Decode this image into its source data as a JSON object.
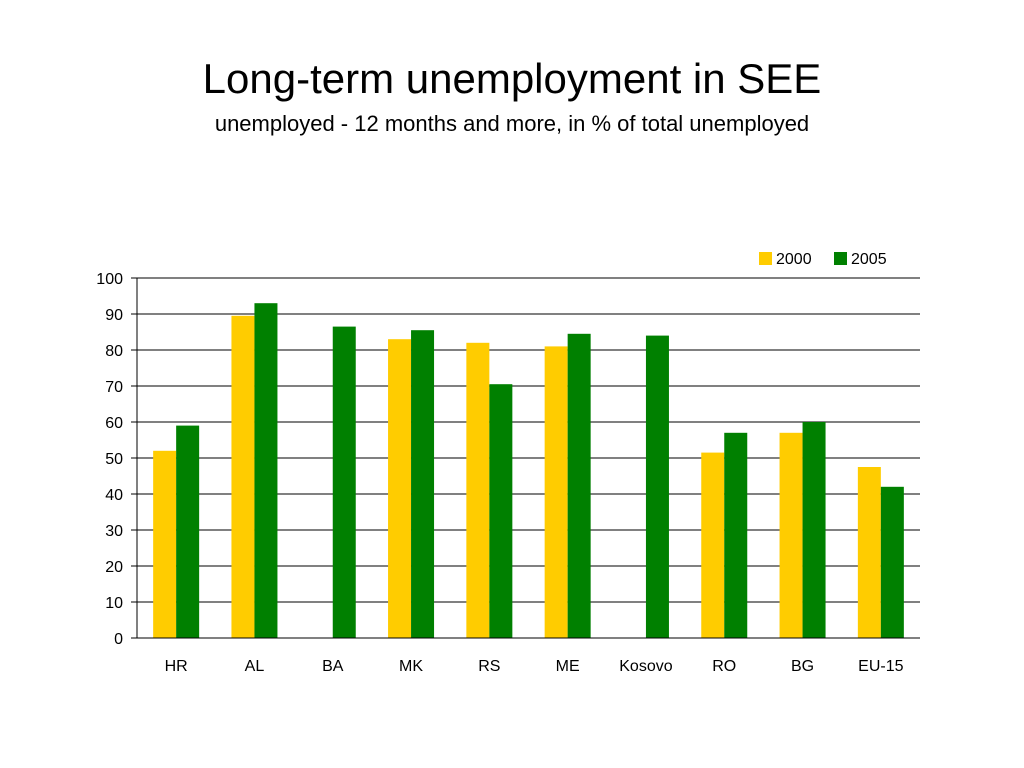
{
  "chart_data": {
    "type": "bar",
    "title": "Long-term unemployment in SEE",
    "subtitle": "unemployed - 12 months and more, in % of total unemployed",
    "categories": [
      "HR",
      "AL",
      "BA",
      "MK",
      "RS",
      "ME",
      "Kosovo",
      "RO",
      "BG",
      "EU-15"
    ],
    "series": [
      {
        "name": "2000",
        "color": "#FFCC00",
        "values": [
          52,
          89.5,
          null,
          83,
          82,
          81,
          null,
          51.5,
          57,
          47.5
        ]
      },
      {
        "name": "2005",
        "color": "#008000",
        "values": [
          59,
          93,
          86.5,
          85.5,
          70.5,
          84.5,
          84,
          57,
          60,
          42
        ]
      }
    ],
    "ylim": [
      0,
      100
    ],
    "yticks": [
      0,
      10,
      20,
      30,
      40,
      50,
      60,
      70,
      80,
      90,
      100
    ],
    "xlabel": "",
    "ylabel": "",
    "grid": true,
    "legend": "top-right"
  }
}
